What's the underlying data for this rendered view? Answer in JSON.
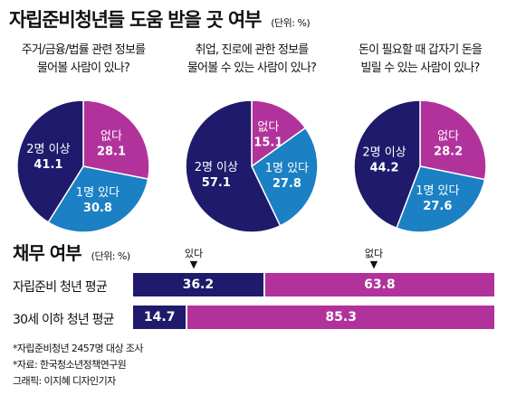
{
  "title": "자립준비청년들 도움 받을 곳 여부",
  "unit": "(단위: %)",
  "colors": {
    "navy": "#1f1a6b",
    "blue": "#1b80c4",
    "magenta": "#b2329b"
  },
  "chart_data": [
    {
      "type": "pie",
      "title_lines": [
        "주거/금융/법률 관련 정보를",
        "물어볼 사람이 있나?"
      ],
      "slices": [
        {
          "label": "없다",
          "value": 28.1,
          "color": "#b2329b"
        },
        {
          "label": "1명 있다",
          "value": 30.8,
          "color": "#1b80c4"
        },
        {
          "label": "2명 이상",
          "value": 41.1,
          "color": "#1f1a6b"
        }
      ]
    },
    {
      "type": "pie",
      "title_lines": [
        "취업, 진로에 관한 정보를",
        "물어볼 수 있는 사람이 있나?"
      ],
      "slices": [
        {
          "label": "없다",
          "value": 15.1,
          "color": "#b2329b"
        },
        {
          "label": "1명 있다",
          "value": 27.8,
          "color": "#1b80c4"
        },
        {
          "label": "2명 이상",
          "value": 57.1,
          "color": "#1f1a6b"
        }
      ]
    },
    {
      "type": "pie",
      "title_lines": [
        "돈이 필요할 때 갑자기 돈을",
        "빌릴 수 있는 사람이 있나?"
      ],
      "slices": [
        {
          "label": "없다",
          "value": 28.2,
          "color": "#b2329b"
        },
        {
          "label": "1명 있다",
          "value": 27.6,
          "color": "#1b80c4"
        },
        {
          "label": "2명 이상",
          "value": 44.2,
          "color": "#1f1a6b"
        }
      ]
    },
    {
      "type": "bar",
      "stacked": true,
      "orientation": "horizontal",
      "title": "채무 여부",
      "unit": "(단위: %)",
      "legend": [
        "있다",
        "없다"
      ],
      "categories": [
        "자립준비 청년 평균",
        "30세 이하 청년 평균"
      ],
      "series": [
        {
          "name": "있다",
          "values": [
            36.2,
            14.7
          ],
          "color": "#1f1a6b"
        },
        {
          "name": "없다",
          "values": [
            63.8,
            85.3
          ],
          "color": "#b2329b"
        }
      ]
    }
  ],
  "footnotes": [
    "*자립준비청년 2457명 대상 조사",
    "*자료: 한국청소년정책연구원",
    "그래픽: 이지혜 디자인기자"
  ]
}
